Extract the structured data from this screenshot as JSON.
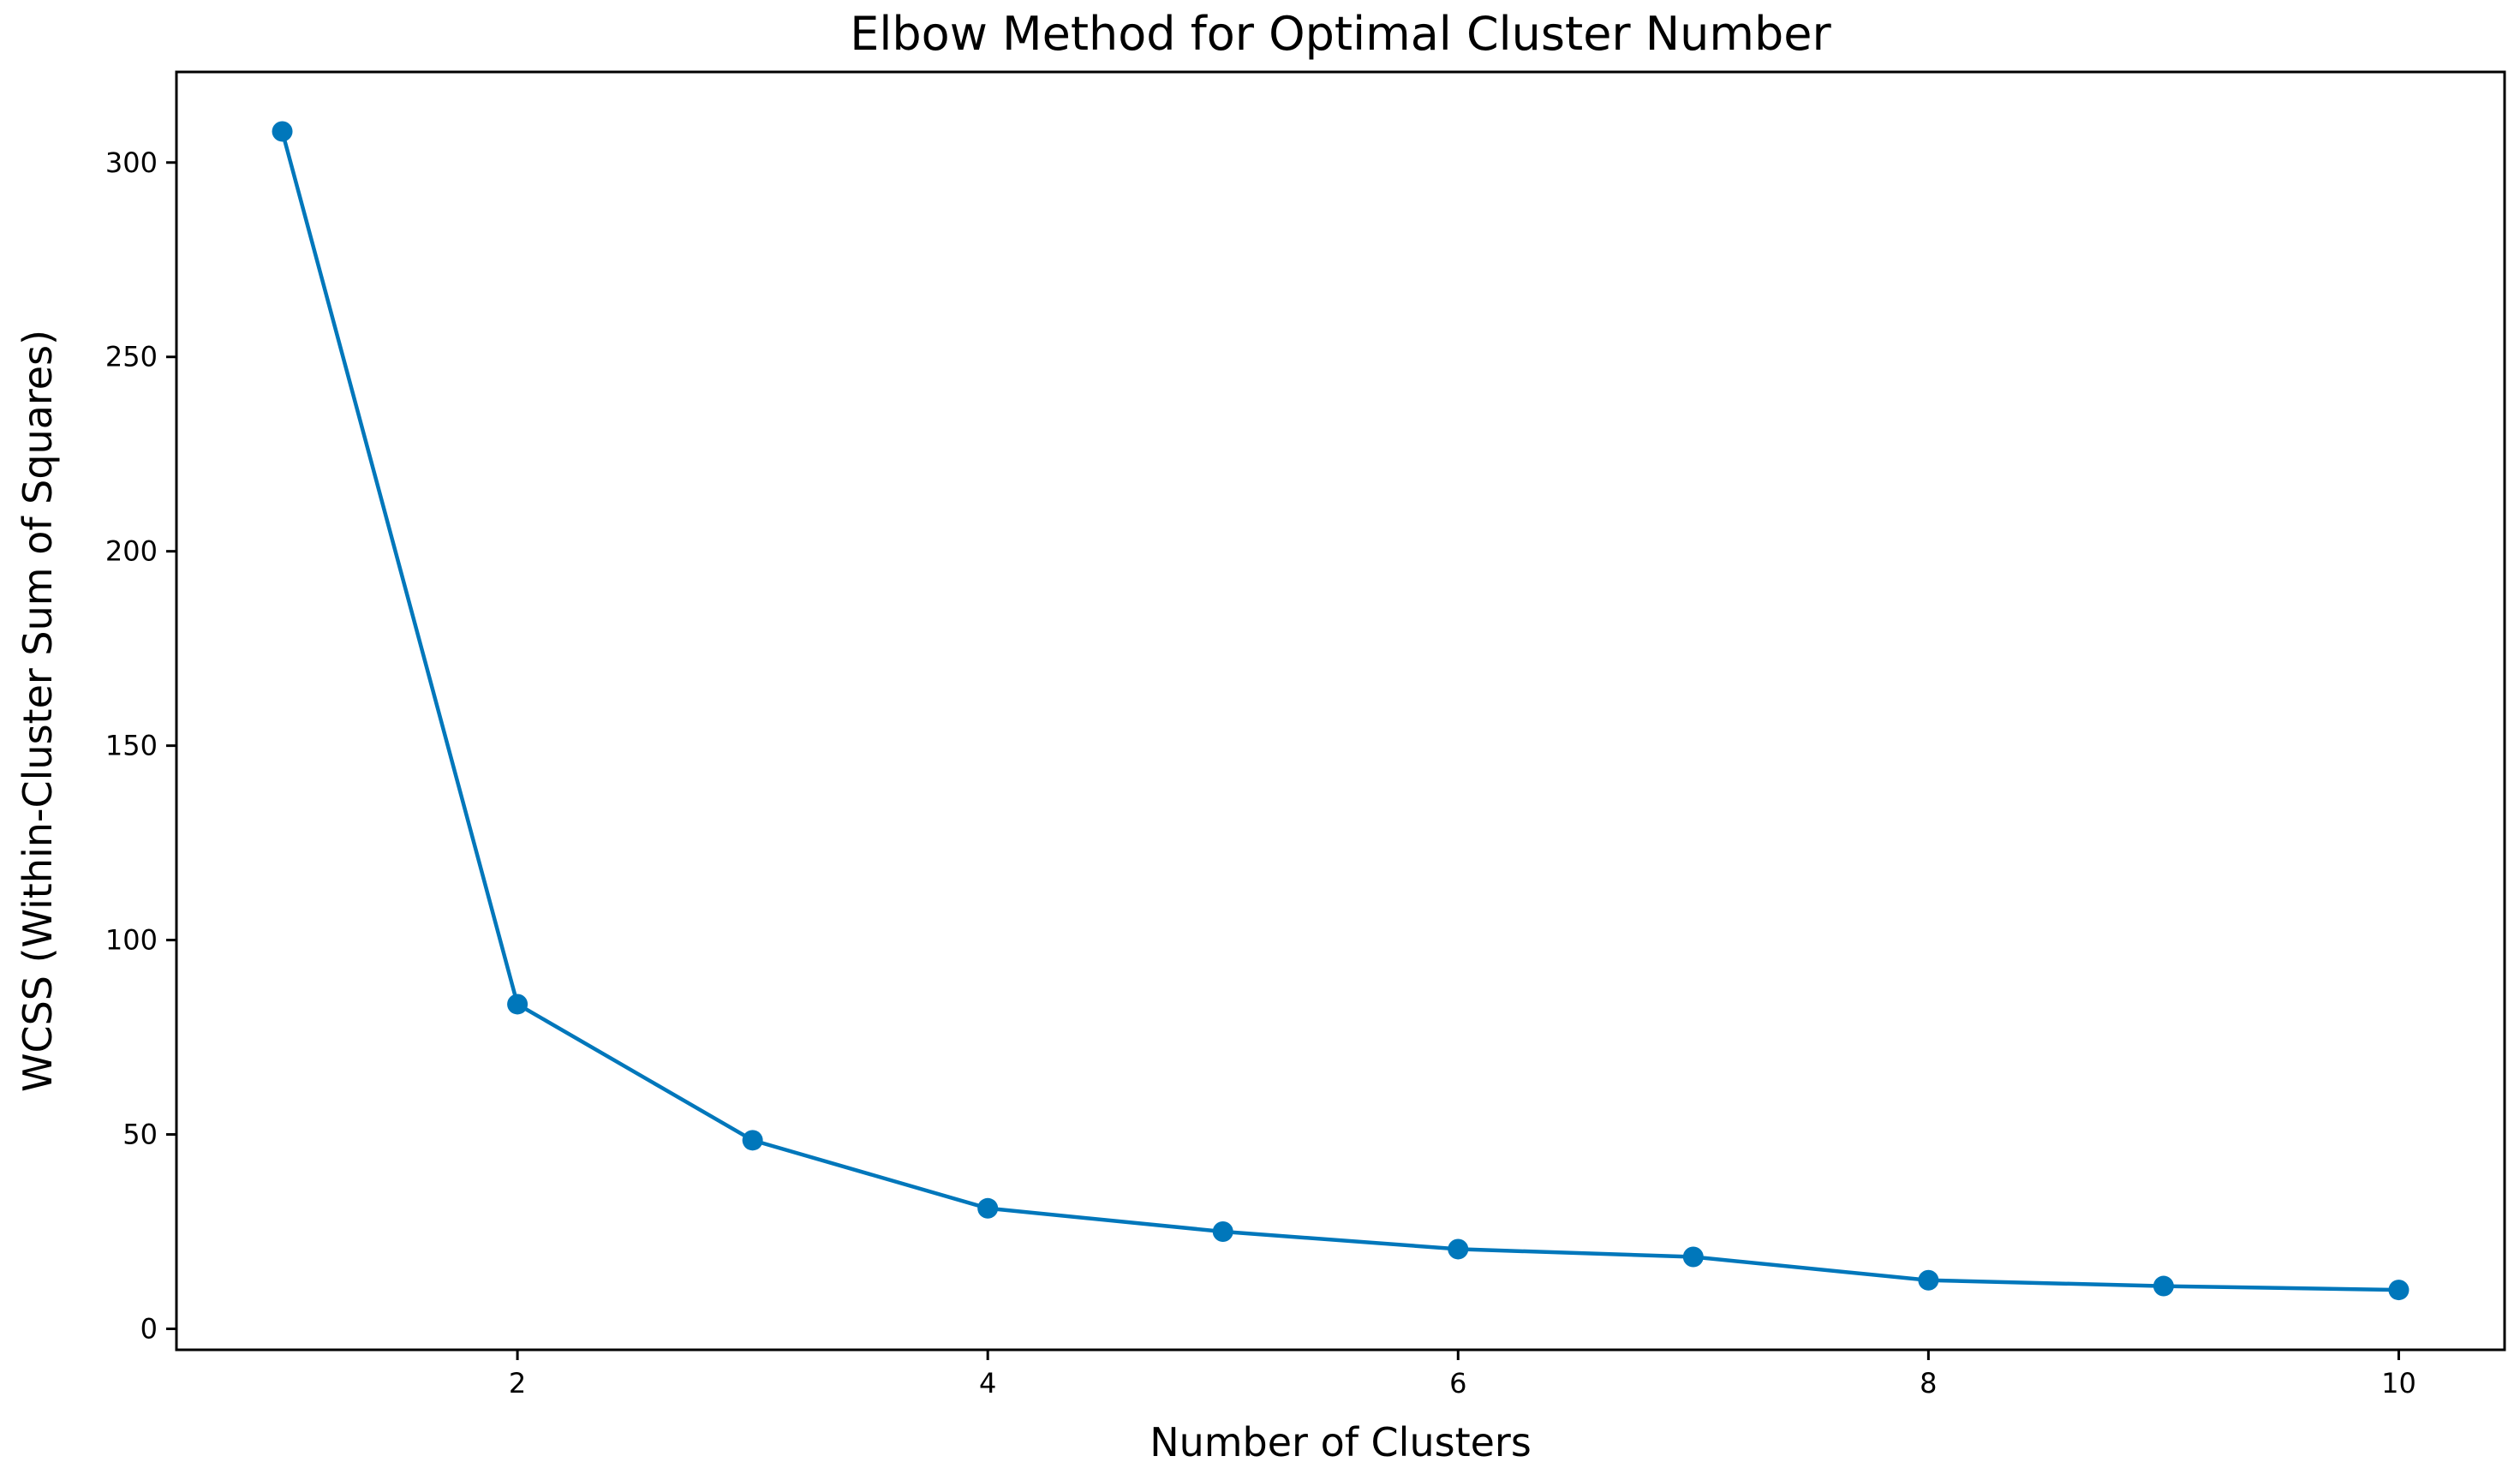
{
  "chart_data": {
    "type": "line",
    "title": "Elbow Method for Optimal Cluster Number",
    "xlabel": "Number of Clusters",
    "ylabel": "WCSS (Within-Cluster Sum of Squares)",
    "x": [
      1,
      2,
      3,
      4,
      5,
      6,
      7,
      8,
      9,
      10
    ],
    "series": [
      {
        "values": [
          308,
          83.5,
          48.5,
          31,
          25,
          20.5,
          18.5,
          12.5,
          11,
          10
        ],
        "color": "#0077BB",
        "marker": "circle"
      }
    ],
    "xticks": [
      2,
      4,
      6,
      8,
      10
    ],
    "yticks": [
      0,
      50,
      100,
      150,
      200,
      250,
      300
    ],
    "xlim": [
      0.55,
      10.45
    ],
    "ylim": [
      -5.4,
      323.3
    ],
    "grid": false,
    "legend": "none"
  }
}
